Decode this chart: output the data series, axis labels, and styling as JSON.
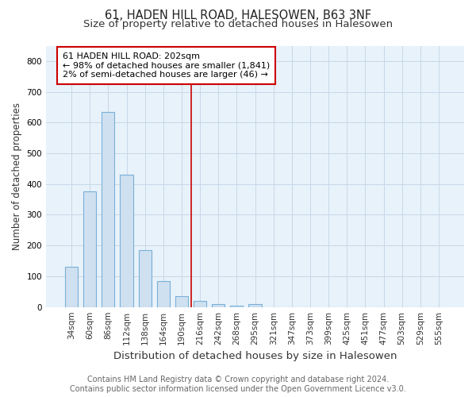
{
  "title": "61, HADEN HILL ROAD, HALESOWEN, B63 3NF",
  "subtitle": "Size of property relative to detached houses in Halesowen",
  "xlabel": "Distribution of detached houses by size in Halesowen",
  "ylabel": "Number of detached properties",
  "categories": [
    "34sqm",
    "60sqm",
    "86sqm",
    "112sqm",
    "138sqm",
    "164sqm",
    "190sqm",
    "216sqm",
    "242sqm",
    "268sqm",
    "295sqm",
    "321sqm",
    "347sqm",
    "373sqm",
    "399sqm",
    "425sqm",
    "451sqm",
    "477sqm",
    "503sqm",
    "529sqm",
    "555sqm"
  ],
  "values": [
    130,
    375,
    635,
    430,
    185,
    85,
    35,
    20,
    10,
    5,
    10,
    0,
    0,
    0,
    0,
    0,
    0,
    0,
    0,
    0,
    0
  ],
  "bar_color": "#cfe0f0",
  "bar_edge_color": "#7ab0d8",
  "bar_linewidth": 0.8,
  "bar_width": 0.7,
  "vline_x_index": 6.5,
  "vline_color": "#cc0000",
  "vline_linewidth": 1.2,
  "annotation_text": "61 HADEN HILL ROAD: 202sqm\n← 98% of detached houses are smaller (1,841)\n2% of semi-detached houses are larger (46) →",
  "annotation_box_color": "#ffffff",
  "annotation_box_edge": "#cc0000",
  "ylim": [
    0,
    850
  ],
  "yticks": [
    0,
    100,
    200,
    300,
    400,
    500,
    600,
    700,
    800
  ],
  "grid_color": "#c8d8e8",
  "bg_color": "#e8f2fa",
  "footer_text": "Contains HM Land Registry data © Crown copyright and database right 2024.\nContains public sector information licensed under the Open Government Licence v3.0.",
  "title_fontsize": 10.5,
  "subtitle_fontsize": 9.5,
  "xlabel_fontsize": 9.5,
  "ylabel_fontsize": 8.5,
  "tick_fontsize": 7.5,
  "annotation_fontsize": 8,
  "footer_fontsize": 7
}
